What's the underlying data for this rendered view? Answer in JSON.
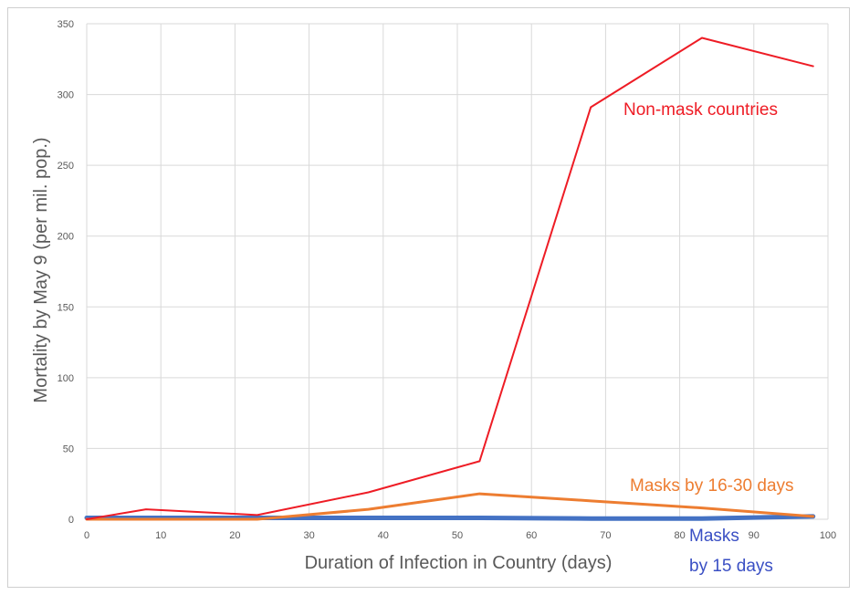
{
  "chart_data": {
    "type": "line",
    "title": "",
    "xlabel": "Duration of Infection in Country (days)",
    "ylabel": "Mortality by May 9 (per mil. pop.)",
    "xlim": [
      0,
      100
    ],
    "ylim": [
      0,
      350
    ],
    "x_ticks": [
      0,
      10,
      20,
      30,
      40,
      50,
      60,
      70,
      80,
      90,
      100
    ],
    "y_ticks": [
      0,
      50,
      100,
      150,
      200,
      250,
      300,
      350
    ],
    "grid": true,
    "series": [
      {
        "name": "Non-mask countries",
        "color": "#ee1c25",
        "width": 2,
        "x": [
          0,
          8,
          23,
          38,
          53,
          68,
          83,
          98
        ],
        "y": [
          0,
          7,
          3,
          19,
          41,
          291,
          340,
          320
        ]
      },
      {
        "name": "Masks by 16-30 days",
        "color": "#ed7d31",
        "width": 3,
        "x": [
          0,
          23,
          38,
          53,
          68,
          83,
          98
        ],
        "y": [
          0,
          0,
          7,
          18,
          13,
          8,
          2
        ]
      },
      {
        "name": "Masks by 15 days",
        "color": "#4472c4",
        "width": 5,
        "x": [
          0,
          23,
          38,
          53,
          68,
          83,
          98
        ],
        "y": [
          1,
          1,
          1,
          1,
          0.5,
          0.5,
          2
        ]
      }
    ],
    "annotations": [
      {
        "text": "Non-mask countries",
        "color": "#ee1c25"
      },
      {
        "text": "Masks by 16-30 days",
        "color": "#ed7d31"
      },
      {
        "text": "Masks",
        "color": "#3a4fc4"
      },
      {
        "text": "by 15 days",
        "color": "#3a4fc4"
      }
    ]
  }
}
